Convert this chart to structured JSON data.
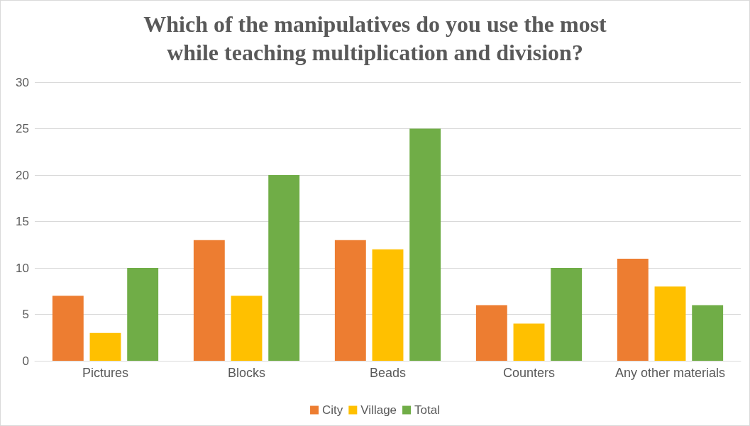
{
  "chart_data": {
    "type": "bar",
    "title": "Which of the manipulatives do you use the most\nwhile teaching multiplication and division?",
    "categories": [
      "Pictures",
      "Blocks",
      "Beads",
      "Counters",
      "Any other materials"
    ],
    "series": [
      {
        "name": "City",
        "color": "#ed7d31",
        "values": [
          7,
          13,
          13,
          6,
          11
        ]
      },
      {
        "name": "Village",
        "color": "#ffc000",
        "values": [
          3,
          7,
          12,
          4,
          8
        ]
      },
      {
        "name": "Total",
        "color": "#70ad47",
        "values": [
          10,
          20,
          25,
          10,
          6
        ]
      }
    ],
    "ylim": [
      0,
      30
    ],
    "yticks": [
      0,
      5,
      10,
      15,
      20,
      25,
      30
    ],
    "grid": "y",
    "legend": "bottom"
  }
}
